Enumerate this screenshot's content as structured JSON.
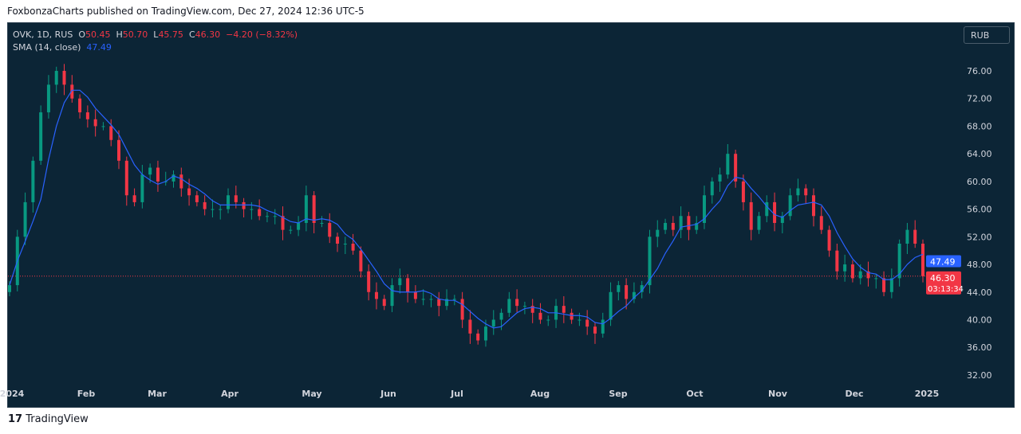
{
  "header": "FoxbonzaCharts published on TradingView.com, Dec 27, 2024 12:36 UTC-5",
  "legend": {
    "symbol": "OVK, 1D, RUS",
    "o_label": "O",
    "o": "50.45",
    "h_label": "H",
    "h": "50.70",
    "l_label": "L",
    "l": "45.75",
    "c_label": "C",
    "c": "46.30",
    "change": "−4.20 (−8.32%)",
    "sma_label": "SMA (14, close)",
    "sma": "47.49"
  },
  "currency": "RUB",
  "footer": "TradingView",
  "colors": {
    "up": "#089981",
    "down": "#f23645",
    "sma": "#2962ff",
    "bg": "#0c2536"
  },
  "chart_data": {
    "type": "candlestick",
    "ylim": [
      30,
      79
    ],
    "yticks": [
      "76.00",
      "72.00",
      "68.00",
      "64.00",
      "60.00",
      "56.00",
      "52.00",
      "48.00",
      "44.00",
      "40.00",
      "36.00",
      "32.00"
    ],
    "xticks": [
      "2024",
      "Feb",
      "Mar",
      "Apr",
      "May",
      "Jun",
      "Jul",
      "Aug",
      "Sep",
      "Oct",
      "Nov",
      "Dec",
      "2025"
    ],
    "closes": [
      45,
      52,
      57,
      63,
      70,
      74,
      76,
      74,
      72,
      70,
      69,
      68,
      68,
      66,
      63,
      58,
      57,
      61,
      62,
      60,
      60,
      61,
      59,
      58,
      57,
      56,
      56,
      56,
      58,
      57,
      56,
      56,
      55,
      55,
      55,
      53,
      53,
      54,
      58,
      54,
      54,
      52,
      51,
      51,
      50,
      47,
      44,
      43,
      42,
      45,
      46,
      44,
      43,
      43,
      43,
      42,
      43,
      43,
      40,
      38,
      37,
      39,
      40,
      41,
      43,
      42,
      42,
      41,
      40,
      40,
      42,
      41,
      40,
      40,
      39,
      38,
      40,
      44,
      45,
      43,
      44,
      45,
      52,
      53,
      54,
      53,
      55,
      53,
      54,
      58,
      60,
      61,
      64,
      60,
      57,
      53,
      55,
      57,
      54,
      55,
      58,
      59,
      58,
      55,
      53,
      50,
      47,
      48,
      46,
      47,
      46,
      46,
      44,
      46,
      51,
      53,
      51,
      46.3
    ],
    "last_price": "46.30",
    "sma_last": "47.49",
    "countdown": "03:13:34"
  }
}
